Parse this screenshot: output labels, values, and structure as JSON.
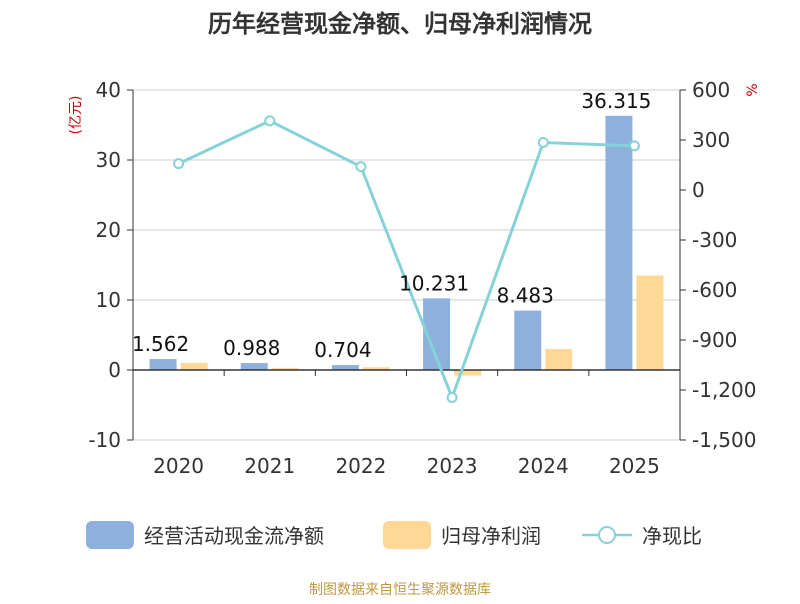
{
  "chart_data": {
    "type": "bar",
    "title": "历年经营现金净额、归母净利润情况",
    "categories": [
      "2020",
      "2021",
      "2022",
      "2023",
      "2024",
      "2025"
    ],
    "y_left": {
      "label": "(亿元)",
      "ticks": [
        -10,
        0,
        10,
        20,
        30,
        40
      ],
      "ylim": [
        -10,
        40
      ]
    },
    "y_right": {
      "label": "%",
      "ticks": [
        -1500,
        -1200,
        -900,
        -600,
        -300,
        0,
        300,
        600
      ],
      "tick_labels": [
        "-1,500",
        "-1,200",
        "-900",
        "-600",
        "-300",
        "0",
        "300",
        "600"
      ],
      "ylim": [
        -1500,
        600
      ]
    },
    "series": [
      {
        "name": "经营活动现金流净额",
        "type": "bar",
        "axis": "left",
        "values": [
          1.562,
          0.988,
          0.704,
          10.231,
          8.483,
          36.315
        ],
        "labels": [
          "1.562",
          "0.988",
          "0.704",
          "10.231",
          "8.483",
          "36.315"
        ]
      },
      {
        "name": "归母净利润",
        "type": "bar",
        "axis": "left",
        "values": [
          1.0,
          0.3,
          0.4,
          -0.8,
          3.0,
          13.5
        ]
      },
      {
        "name": "净现比",
        "type": "line",
        "axis": "right",
        "values": [
          158,
          415,
          140,
          -1245,
          285,
          265
        ]
      }
    ],
    "colors": {
      "bar1": "#8eb0dc",
      "bar2": "#ffd896",
      "line": "#86d2d9",
      "title": "#333333",
      "axis_label": "#cc0000",
      "footer": "#c09a3e"
    },
    "legend": "bottom",
    "grid": true
  },
  "footer": "制图数据来自恒生聚源数据库"
}
